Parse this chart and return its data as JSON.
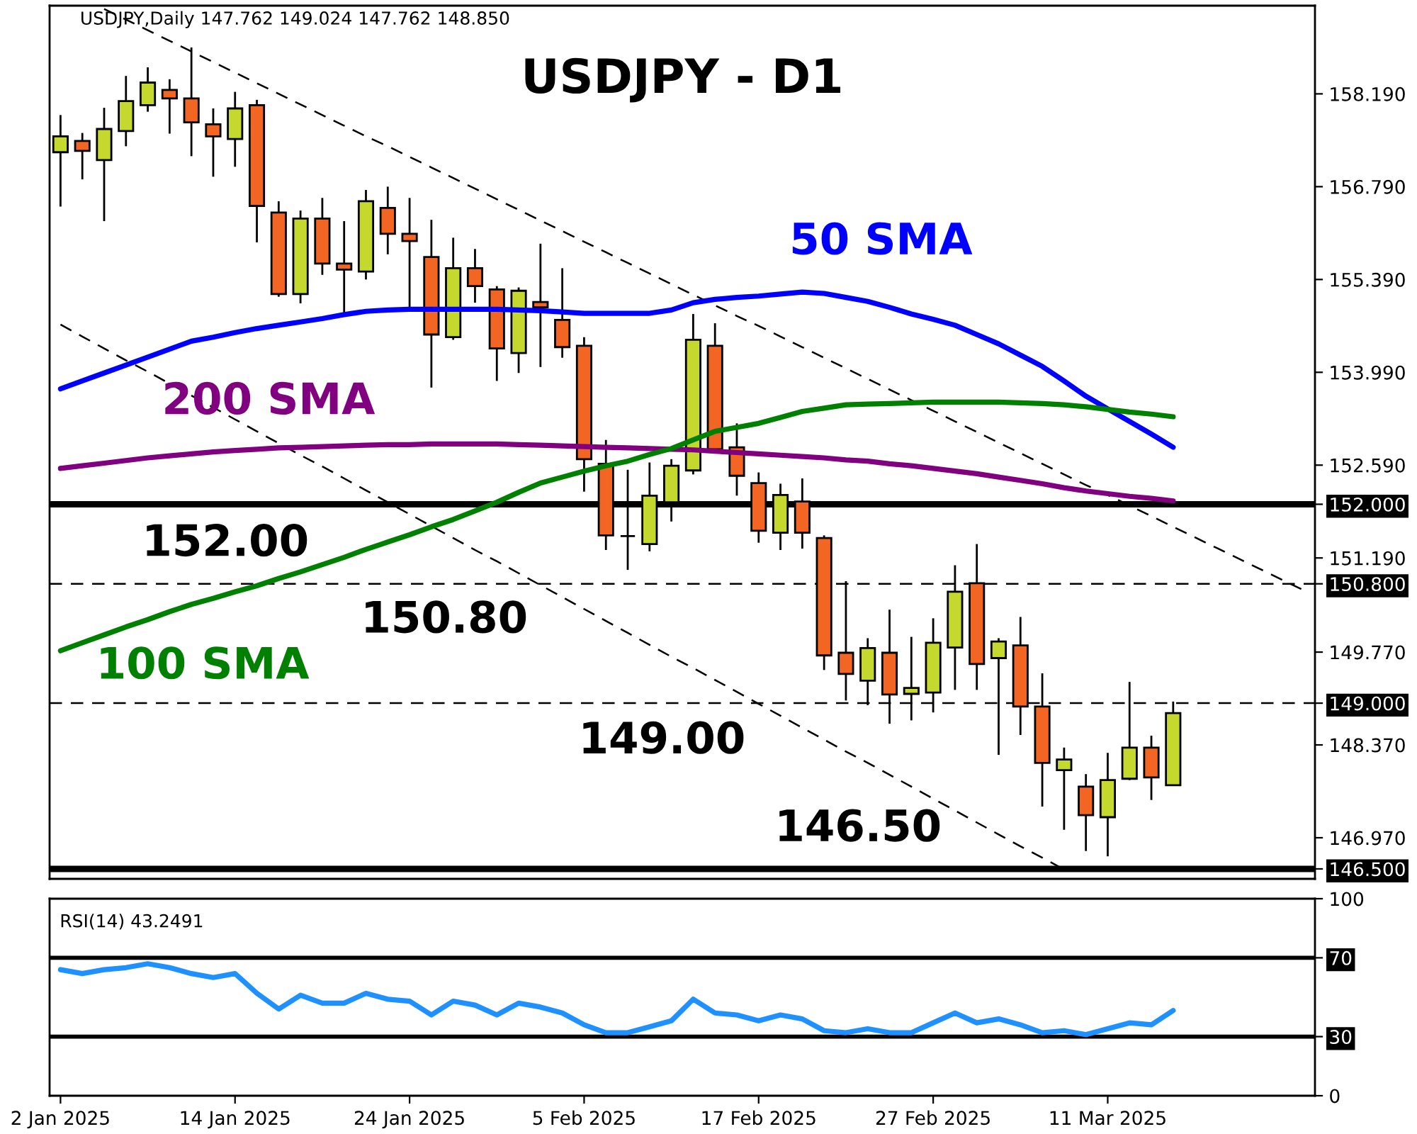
{
  "chart_data": [
    {
      "type": "candlestick",
      "title": "USDJPY - D1",
      "subtitle": "USDJPY,Daily 147.762 149.024 147.762 148.850",
      "categories": [
        null,
        null,
        null,
        null,
        null,
        null,
        null,
        null,
        null,
        null,
        null,
        null,
        null,
        null,
        null,
        null,
        null,
        null,
        null,
        null,
        null,
        null,
        null,
        null,
        null,
        null,
        null,
        null,
        null,
        null,
        null,
        null,
        null,
        null,
        null,
        null,
        null,
        null,
        null,
        null,
        null,
        null,
        null,
        null,
        null,
        null,
        null,
        null,
        null,
        null,
        null,
        null,
        null,
        null,
        null,
        null,
        null,
        null
      ],
      "ohlc": [
        [
          157.31,
          157.87,
          156.49,
          157.55
        ],
        [
          157.48,
          157.6,
          156.9,
          157.33
        ],
        [
          157.19,
          157.98,
          156.27,
          157.66
        ],
        [
          157.63,
          158.46,
          157.4,
          158.08
        ],
        [
          158.02,
          158.59,
          157.92,
          158.36
        ],
        [
          158.25,
          158.41,
          157.59,
          158.12
        ],
        [
          158.12,
          158.89,
          157.25,
          157.76
        ],
        [
          157.73,
          157.97,
          156.94,
          157.55
        ],
        [
          157.51,
          158.22,
          157.09,
          157.97
        ],
        [
          158.02,
          158.1,
          155.95,
          156.5
        ],
        [
          156.4,
          156.57,
          155.13,
          155.17
        ],
        [
          155.17,
          156.43,
          155.03,
          156.31
        ],
        [
          156.31,
          156.62,
          155.46,
          155.63
        ],
        [
          155.63,
          156.27,
          154.89,
          155.54
        ],
        [
          155.51,
          156.74,
          155.39,
          156.57
        ],
        [
          156.47,
          156.79,
          155.77,
          156.08
        ],
        [
          156.08,
          156.62,
          154.93,
          155.97
        ],
        [
          155.73,
          156.29,
          153.76,
          154.56
        ],
        [
          154.52,
          156.02,
          154.48,
          155.56
        ],
        [
          155.56,
          155.85,
          155.04,
          155.29
        ],
        [
          155.24,
          155.29,
          153.86,
          154.35
        ],
        [
          154.28,
          155.27,
          153.98,
          155.22
        ],
        [
          155.05,
          155.93,
          154.07,
          154.97
        ],
        [
          154.78,
          155.56,
          154.21,
          154.37
        ],
        [
          154.39,
          154.52,
          152.19,
          152.68
        ],
        [
          152.61,
          152.97,
          151.31,
          151.53
        ],
        [
          151.52,
          152.52,
          151.01,
          151.52
        ],
        [
          151.4,
          152.63,
          151.29,
          152.13
        ],
        [
          152.03,
          152.68,
          151.74,
          152.58
        ],
        [
          152.51,
          154.87,
          152.45,
          154.48
        ],
        [
          154.39,
          154.73,
          152.8,
          152.83
        ],
        [
          152.86,
          153.22,
          152.13,
          152.43
        ],
        [
          152.32,
          152.48,
          151.42,
          151.6
        ],
        [
          151.57,
          152.31,
          151.31,
          152.14
        ],
        [
          152.04,
          152.39,
          151.33,
          151.57
        ],
        [
          151.49,
          151.53,
          149.5,
          149.72
        ],
        [
          149.76,
          150.84,
          149.04,
          149.44
        ],
        [
          149.34,
          149.98,
          148.97,
          149.83
        ],
        [
          149.76,
          150.41,
          148.69,
          149.13
        ],
        [
          149.14,
          150.0,
          148.74,
          149.23
        ],
        [
          149.16,
          150.28,
          148.86,
          149.91
        ],
        [
          149.84,
          151.08,
          149.2,
          150.68
        ],
        [
          150.81,
          151.4,
          149.2,
          149.59
        ],
        [
          149.68,
          149.98,
          148.22,
          149.93
        ],
        [
          149.87,
          150.3,
          148.52,
          148.95
        ],
        [
          148.95,
          149.45,
          147.44,
          148.1
        ],
        [
          147.99,
          148.33,
          147.09,
          148.15
        ],
        [
          147.74,
          147.93,
          146.77,
          147.31
        ],
        [
          147.28,
          148.25,
          146.69,
          147.84
        ],
        [
          147.86,
          149.32,
          147.84,
          148.33
        ],
        [
          148.33,
          148.51,
          147.54,
          147.88
        ],
        [
          147.762,
          149.024,
          147.762,
          148.85
        ],
        null,
        null,
        null,
        null,
        null,
        null
      ],
      "colors": [
        "#c4d82e",
        "#f26522",
        "#c4d82e",
        "#c4d82e",
        "#c4d82e",
        "#f26522",
        "#f26522",
        "#f26522",
        "#c4d82e",
        "#f26522",
        "#f26522",
        "#c4d82e",
        "#f26522",
        "#f26522",
        "#c4d82e",
        "#f26522",
        "#f26522",
        "#f26522",
        "#c4d82e",
        "#f26522",
        "#f26522",
        "#c4d82e",
        "#f26522",
        "#f26522",
        "#f26522",
        "#f26522",
        "#000000",
        "#c4d82e",
        "#c4d82e",
        "#c4d82e",
        "#f26522",
        "#f26522",
        "#f26522",
        "#c4d82e",
        "#f26522",
        "#f26522",
        "#f26522",
        "#c4d82e",
        "#f26522",
        "#c4d82e",
        "#c4d82e",
        "#c4d82e",
        "#f26522",
        "#c4d82e",
        "#f26522",
        "#f26522",
        "#c4d82e",
        "#f26522",
        "#c4d82e",
        "#c4d82e",
        "#f26522",
        "#c4d82e",
        null,
        null,
        null,
        null,
        null,
        null
      ],
      "series": [
        {
          "type": "line",
          "name": "50 SMA",
          "color": "#0000ff",
          "values": [
            153.74,
            153.86,
            153.98,
            154.1,
            154.22,
            154.34,
            154.46,
            154.52,
            154.59,
            154.65,
            154.7,
            154.75,
            154.8,
            154.86,
            154.91,
            154.93,
            154.94,
            154.94,
            154.94,
            154.94,
            154.94,
            154.93,
            154.92,
            154.9,
            154.88,
            154.88,
            154.88,
            154.88,
            154.93,
            155.04,
            155.09,
            155.12,
            155.14,
            155.17,
            155.2,
            155.18,
            155.12,
            155.06,
            154.97,
            154.87,
            154.79,
            154.7,
            154.56,
            154.42,
            154.25,
            154.08,
            153.86,
            153.63,
            153.44,
            153.25,
            153.06,
            152.86,
            null,
            null,
            null,
            null,
            null,
            null
          ]
        },
        {
          "type": "line",
          "name": "200 SMA",
          "color": "#800080",
          "values": [
            152.54,
            152.58,
            152.62,
            152.66,
            152.7,
            152.73,
            152.76,
            152.79,
            152.81,
            152.83,
            152.85,
            152.86,
            152.87,
            152.88,
            152.89,
            152.9,
            152.9,
            152.91,
            152.91,
            152.91,
            152.91,
            152.9,
            152.89,
            152.88,
            152.87,
            152.86,
            152.85,
            152.84,
            152.83,
            152.82,
            152.8,
            152.78,
            152.76,
            152.74,
            152.72,
            152.7,
            152.67,
            152.65,
            152.61,
            152.58,
            152.54,
            152.5,
            152.46,
            152.41,
            152.36,
            152.31,
            152.25,
            152.2,
            152.16,
            152.12,
            152.09,
            152.05,
            null,
            null,
            null,
            null,
            null,
            null
          ]
        },
        {
          "type": "line",
          "name": "100 SMA",
          "color": "#008000",
          "values": [
            149.79,
            149.91,
            150.03,
            150.15,
            150.26,
            150.38,
            150.49,
            150.58,
            150.68,
            150.77,
            150.88,
            150.98,
            151.09,
            151.2,
            151.32,
            151.43,
            151.54,
            151.66,
            151.77,
            151.9,
            152.03,
            152.18,
            152.32,
            152.41,
            152.5,
            152.58,
            152.65,
            152.75,
            152.84,
            152.97,
            153.1,
            153.16,
            153.22,
            153.31,
            153.4,
            153.45,
            153.5,
            153.51,
            153.52,
            153.53,
            153.54,
            153.54,
            153.54,
            153.54,
            153.53,
            153.52,
            153.5,
            153.47,
            153.43,
            153.39,
            153.36,
            153.32,
            null,
            null,
            null,
            null,
            null,
            null
          ]
        },
        {
          "type": "line",
          "color": "#000000",
          "line_style": "dashed",
          "values": [
            null,
            null,
            159.47,
            159.31,
            159.15,
            158.99,
            158.83,
            158.67,
            158.51,
            158.35,
            158.19,
            158.03,
            157.87,
            157.71,
            157.55,
            157.4,
            157.24,
            157.08,
            156.92,
            156.76,
            156.6,
            156.44,
            156.28,
            156.12,
            155.96,
            155.8,
            155.64,
            155.48,
            155.32,
            155.16,
            155.0,
            154.84,
            154.69,
            154.53,
            154.37,
            154.21,
            154.05,
            153.89,
            153.73,
            153.57,
            153.41,
            153.25,
            153.09,
            152.93,
            152.77,
            152.61,
            152.45,
            152.29,
            152.14,
            151.98,
            151.82,
            151.66,
            151.5,
            151.34,
            151.18,
            151.02,
            150.86,
            150.7
          ]
        },
        {
          "type": "line",
          "color": "#000000",
          "line_style": "dashed",
          "values": [
            154.71,
            154.53,
            154.35,
            154.17,
            154.0,
            153.82,
            153.64,
            153.46,
            153.28,
            153.1,
            152.92,
            152.74,
            152.57,
            152.39,
            152.21,
            152.03,
            151.85,
            151.67,
            151.49,
            151.31,
            151.14,
            150.96,
            150.78,
            150.6,
            150.42,
            150.24,
            150.06,
            149.88,
            149.7,
            149.53,
            149.35,
            149.17,
            148.99,
            148.81,
            148.63,
            148.45,
            148.27,
            148.1,
            147.92,
            147.74,
            147.56,
            147.38,
            147.2,
            147.02,
            146.84,
            146.67,
            146.49,
            null,
            null,
            null,
            null,
            null,
            null,
            null,
            null,
            null,
            null,
            null
          ]
        }
      ],
      "ylim": [
        146.35,
        159.52
      ],
      "yticks": [
        {
          "value": 146.97,
          "label": "146.970"
        },
        {
          "value": 148.37,
          "label": "148.370"
        },
        {
          "value": 149.77,
          "label": "149.770"
        },
        {
          "value": 151.19,
          "label": "151.190"
        },
        {
          "value": 152.59,
          "label": "152.590"
        },
        {
          "value": 153.99,
          "label": "153.990"
        },
        {
          "value": 155.39,
          "label": "155.390"
        },
        {
          "value": 156.79,
          "label": "156.790"
        },
        {
          "value": 158.19,
          "label": "158.190"
        },
        {
          "value": 146.5,
          "label": "146.500"
        },
        {
          "value": 149.0,
          "label": "149.000"
        },
        {
          "value": 150.8,
          "label": "150.800"
        },
        {
          "value": 152.0,
          "label": "152.000"
        }
      ],
      "ref_lines": [
        {
          "axis": "y",
          "value": 152.0,
          "label": "152.00",
          "color": "#000000",
          "line_style": "solid"
        },
        {
          "axis": "y",
          "value": 150.8,
          "label": "150.80",
          "color": "#000000",
          "line_style": "dashed"
        },
        {
          "axis": "y",
          "value": 149.0,
          "label": "149.00",
          "color": "#000000",
          "line_style": "dashed"
        },
        {
          "axis": "y",
          "value": 146.5,
          "label": "146.50",
          "color": "#000000",
          "line_style": "solid"
        }
      ],
      "tick_labels": "y"
    },
    {
      "type": "line",
      "title": "RSI(14) 43.2491",
      "categories": [
        "2 Jan 2025",
        null,
        null,
        null,
        null,
        null,
        null,
        null,
        "14 Jan 2025",
        null,
        null,
        null,
        null,
        null,
        null,
        null,
        "24 Jan 2025",
        null,
        null,
        null,
        null,
        null,
        null,
        null,
        "5 Feb 2025",
        null,
        null,
        null,
        null,
        null,
        null,
        null,
        "17 Feb 2025",
        null,
        null,
        null,
        null,
        null,
        null,
        null,
        "27 Feb 2025",
        null,
        null,
        null,
        null,
        null,
        null,
        null,
        "11 Mar 2025",
        null,
        null,
        null,
        null,
        null,
        null,
        null,
        null,
        null
      ],
      "values": [
        64,
        62,
        64,
        65,
        67,
        65,
        62,
        60,
        62,
        52,
        44,
        51,
        47,
        47,
        52,
        49,
        48,
        41,
        48,
        46,
        41,
        47,
        45,
        42,
        36,
        32,
        32,
        35,
        38,
        49,
        42,
        41,
        38,
        41,
        39,
        33,
        32,
        34,
        32,
        32,
        37,
        42,
        37,
        39,
        36,
        32,
        33,
        31,
        34,
        37,
        36,
        43.2491,
        null,
        null,
        null,
        null,
        null,
        null
      ],
      "color": "#1e90ff",
      "ylim": [
        0,
        100
      ],
      "yticks": [
        0,
        30,
        70,
        100
      ],
      "ref_lines": [
        {
          "axis": "y",
          "value": 70,
          "color": "#000000",
          "line_style": "solid"
        },
        {
          "axis": "y",
          "value": 30,
          "color": "#000000",
          "line_style": "solid"
        }
      ]
    }
  ]
}
